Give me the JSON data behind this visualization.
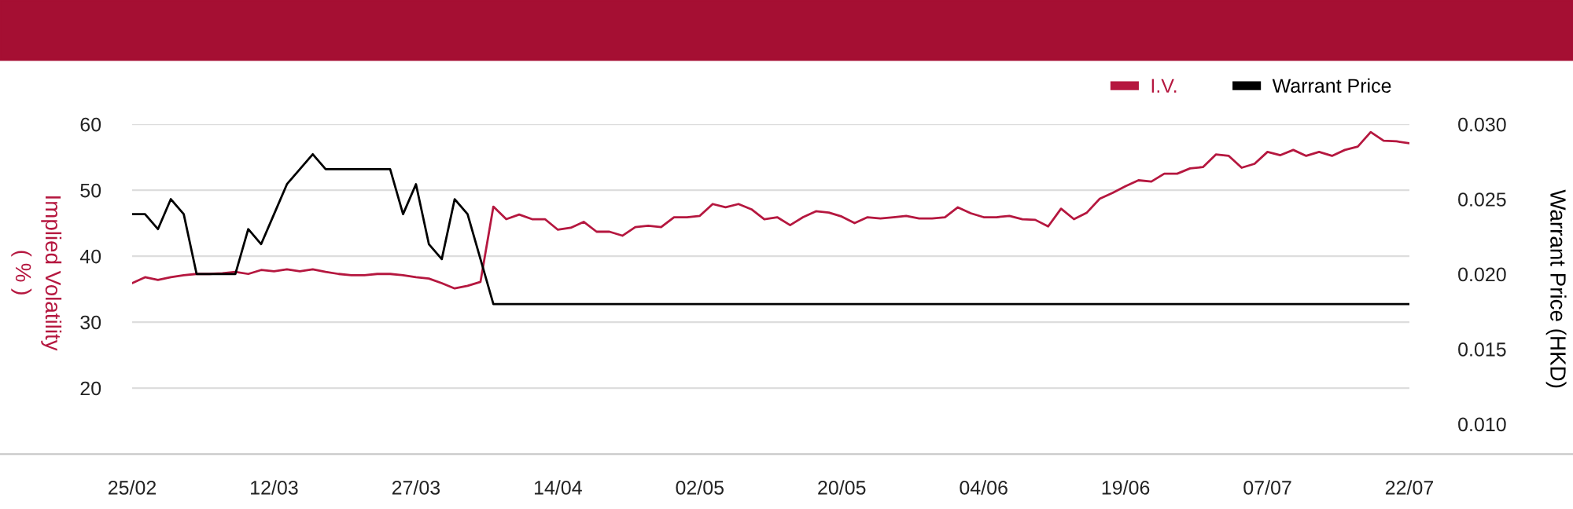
{
  "chart_data": {
    "type": "line",
    "ylabel": "Implied Volatility\n( % )",
    "y2label": "Warrant Price (HKD)",
    "categories": [
      "25/02",
      null,
      null,
      null,
      null,
      null,
      null,
      null,
      null,
      null,
      null,
      "12/03",
      null,
      null,
      null,
      null,
      null,
      null,
      null,
      null,
      null,
      null,
      "27/03",
      null,
      null,
      null,
      null,
      null,
      null,
      null,
      null,
      null,
      null,
      "14/04",
      null,
      null,
      null,
      null,
      null,
      null,
      null,
      null,
      null,
      null,
      "02/05",
      null,
      null,
      null,
      null,
      null,
      null,
      null,
      null,
      null,
      null,
      "20/05",
      null,
      null,
      null,
      null,
      null,
      null,
      null,
      null,
      null,
      null,
      "04/06",
      null,
      null,
      null,
      null,
      null,
      null,
      null,
      null,
      null,
      null,
      "19/06",
      null,
      null,
      null,
      null,
      null,
      null,
      null,
      null,
      null,
      null,
      "07/07",
      null,
      null,
      null,
      null,
      null,
      null,
      null,
      null,
      null,
      null,
      "22/07"
    ],
    "series": [
      {
        "name": "I.V.",
        "color": "#b5173f",
        "values": [
          35.9,
          36.8,
          36.4,
          36.8,
          37.1,
          37.3,
          37.3,
          37.4,
          37.6,
          37.3,
          37.9,
          37.7,
          38.0,
          37.7,
          38.0,
          37.6,
          37.3,
          37.1,
          37.1,
          37.3,
          37.3,
          37.1,
          36.8,
          36.6,
          35.9,
          35.1,
          35.5,
          36.1,
          47.5,
          45.6,
          46.3,
          45.6,
          45.6,
          44.0,
          44.3,
          45.2,
          43.7,
          43.7,
          43.1,
          44.4,
          44.6,
          44.4,
          45.9,
          45.9,
          46.1,
          47.9,
          47.4,
          47.9,
          47.1,
          45.6,
          45.9,
          44.7,
          45.9,
          46.8,
          46.6,
          46.0,
          45.0,
          45.9,
          45.7,
          45.9,
          46.1,
          45.7,
          45.7,
          45.9,
          47.4,
          46.5,
          45.9,
          45.9,
          46.1,
          45.6,
          45.5,
          44.5,
          47.2,
          45.6,
          46.6,
          48.7,
          49.6,
          50.6,
          51.5,
          51.3,
          52.5,
          52.5,
          53.3,
          53.5,
          55.4,
          55.2,
          53.4,
          54.0,
          55.8,
          55.3,
          56.1,
          55.2,
          55.8,
          55.2,
          56.1,
          56.6,
          58.8,
          57.5,
          57.4,
          57.1
        ]
      },
      {
        "name": "Warrant Price",
        "color": "#000000",
        "axis": "y2",
        "values": [
          0.024,
          0.024,
          0.023,
          0.025,
          0.024,
          0.02,
          0.02,
          0.02,
          0.02,
          0.023,
          0.022,
          0.024,
          0.026,
          0.027,
          0.028,
          0.027,
          0.027,
          0.027,
          0.027,
          0.027,
          0.027,
          0.024,
          0.026,
          0.022,
          0.021,
          0.025,
          0.024,
          0.021,
          0.018,
          0.018,
          0.018,
          0.018,
          0.018,
          0.018,
          0.018,
          0.018,
          0.018,
          0.018,
          0.018,
          0.018,
          0.018,
          0.018,
          0.018,
          0.018,
          0.018,
          0.018,
          0.018,
          0.018,
          0.018,
          0.018,
          0.018,
          0.018,
          0.018,
          0.018,
          0.018,
          0.018,
          0.018,
          0.018,
          0.018,
          0.018,
          0.018,
          0.018,
          0.018,
          0.018,
          0.018,
          0.018,
          0.018,
          0.018,
          0.018,
          0.018,
          0.018,
          0.018,
          0.018,
          0.018,
          0.018,
          0.018,
          0.018,
          0.018,
          0.018,
          0.018,
          0.018,
          0.018,
          0.018,
          0.018,
          0.018,
          0.018,
          0.018,
          0.018,
          0.018,
          0.018,
          0.018,
          0.018,
          0.018,
          0.018,
          0.018,
          0.018,
          0.018,
          0.018,
          0.018,
          0.018
        ]
      }
    ],
    "ylim": [
      10,
      60
    ],
    "yticks": [
      20,
      30,
      40,
      50,
      60
    ],
    "y2lim": [
      0.008,
      0.03
    ],
    "y2ticks": [
      {
        "value": 0.01,
        "label": "0.010"
      },
      {
        "value": 0.015,
        "label": "0.015"
      },
      {
        "value": 0.02,
        "label": "0.020"
      },
      {
        "value": 0.025,
        "label": "0.025"
      },
      {
        "value": 0.03,
        "label": "0.030"
      }
    ],
    "grid": "y",
    "legend": "top right",
    "marker": "none",
    "line_style": "solid"
  }
}
